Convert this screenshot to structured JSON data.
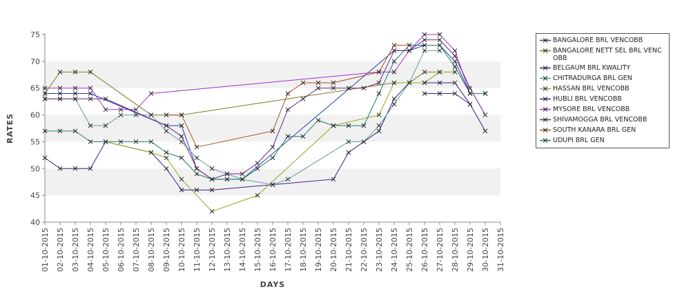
{
  "chart_data": {
    "type": "line",
    "title": "",
    "xlabel": "DAYS",
    "ylabel": "RATES",
    "ylim": [
      40,
      75
    ],
    "yticks": [
      40,
      45,
      50,
      55,
      60,
      65,
      70,
      75
    ],
    "grid": "alternating horizontal bands",
    "legend_position": "right",
    "categories": [
      "01-10-2015",
      "02-10-2015",
      "03-10-2015",
      "04-10-2015",
      "05-10-2015",
      "06-10-2015",
      "07-10-2015",
      "08-10-2015",
      "09-10-2015",
      "10-10-2015",
      "11-10-2015",
      "12-10-2015",
      "13-10-2015",
      "14-10-2015",
      "15-10-2015",
      "16-10-2015",
      "17-10-2015",
      "18-10-2015",
      "19-10-2015",
      "20-10-2015",
      "21-10-2015",
      "22-10-2015",
      "23-10-2015",
      "24-10-2015",
      "25-10-2015",
      "26-10-2015",
      "27-10-2015",
      "28-10-2015",
      "29-10-2015",
      "30-10-2015",
      "31-10-2015"
    ],
    "series": [
      {
        "name": "BANGALORE BRL VENCOBB",
        "color": "#1e3ca8",
        "values": [
          64,
          64,
          64,
          64,
          null,
          null,
          null,
          null,
          58,
          58,
          50,
          48,
          48,
          48,
          null,
          null,
          null,
          null,
          null,
          null,
          null,
          null,
          null,
          72,
          72,
          73,
          73,
          70,
          64,
          64,
          null
        ]
      },
      {
        "name": "BANGALORE NETT SEL BRL VENCOBB",
        "color": "#7a7a18",
        "values": [
          64,
          68,
          68,
          68,
          null,
          null,
          null,
          60,
          60,
          60,
          null,
          null,
          null,
          null,
          null,
          null,
          null,
          null,
          null,
          null,
          null,
          null,
          null,
          66,
          66,
          68,
          68,
          null,
          null,
          null,
          null
        ]
      },
      {
        "name": "BELGAUM BRL KWALITY",
        "color": "#3a1a8c",
        "values": [
          52,
          50,
          50,
          50,
          55,
          null,
          null,
          53,
          50,
          46,
          46,
          46,
          null,
          null,
          null,
          47,
          null,
          null,
          null,
          48,
          53,
          55,
          57,
          63,
          66,
          66,
          66,
          66,
          62,
          57,
          null
        ]
      },
      {
        "name": "CHITRADURGA BRL GEN",
        "color": "#5a9ea0",
        "values": [
          63,
          63,
          63,
          58,
          58,
          60,
          60,
          60,
          57,
          55,
          52,
          50,
          49,
          48,
          null,
          47,
          48,
          null,
          null,
          null,
          55,
          55,
          58,
          62,
          66,
          72,
          72,
          null,
          null,
          null,
          null
        ]
      },
      {
        "name": "HASSAN BRL VENCOBB",
        "color": "#8aa81a",
        "values": [
          null,
          null,
          null,
          null,
          55,
          null,
          null,
          53,
          52,
          48,
          null,
          42,
          null,
          null,
          45,
          null,
          null,
          null,
          null,
          58,
          null,
          null,
          60,
          66,
          66,
          66,
          68,
          68,
          null,
          null,
          null
        ]
      },
      {
        "name": "HUBLI BRL VENCOBB",
        "color": "#2a2aa0",
        "values": [
          null,
          null,
          null,
          null,
          null,
          null,
          null,
          null,
          null,
          null,
          null,
          null,
          null,
          null,
          null,
          null,
          null,
          null,
          null,
          null,
          null,
          null,
          null,
          null,
          null,
          64,
          64,
          64,
          62,
          null,
          null
        ]
      },
      {
        "name": "MYSORE BRL VENCOBB",
        "color": "#a030c8",
        "values": [
          65,
          65,
          65,
          65,
          61,
          61,
          61,
          64,
          null,
          null,
          null,
          null,
          null,
          null,
          null,
          null,
          null,
          null,
          null,
          null,
          null,
          null,
          68,
          68,
          72,
          75,
          75,
          72,
          64,
          64,
          null
        ]
      },
      {
        "name": "SHIVAMOGGA BRL VENCOBB",
        "color": "#6a208a",
        "values": [
          63,
          63,
          63,
          63,
          63,
          null,
          null,
          null,
          58,
          56,
          50,
          48,
          49,
          49,
          51,
          54,
          61,
          63,
          65,
          65,
          65,
          65,
          66,
          72,
          72,
          74,
          74,
          71,
          65,
          60,
          null
        ]
      },
      {
        "name": "SOUTH KANARA BRL GEN",
        "color": "#a8501e",
        "values": [
          null,
          null,
          null,
          null,
          null,
          null,
          null,
          null,
          60,
          60,
          54,
          null,
          null,
          null,
          null,
          57,
          64,
          66,
          66,
          66,
          null,
          null,
          68,
          73,
          73,
          null,
          null,
          null,
          null,
          null,
          null
        ]
      },
      {
        "name": "UDUPI BRL GEN",
        "color": "#1e7a6a",
        "values": [
          57,
          57,
          57,
          55,
          55,
          55,
          55,
          55,
          53,
          52,
          49,
          48,
          48,
          48,
          50,
          52,
          56,
          56,
          59,
          58,
          58,
          58,
          64,
          70,
          73,
          73,
          73,
          69,
          64,
          64,
          null
        ]
      }
    ]
  }
}
